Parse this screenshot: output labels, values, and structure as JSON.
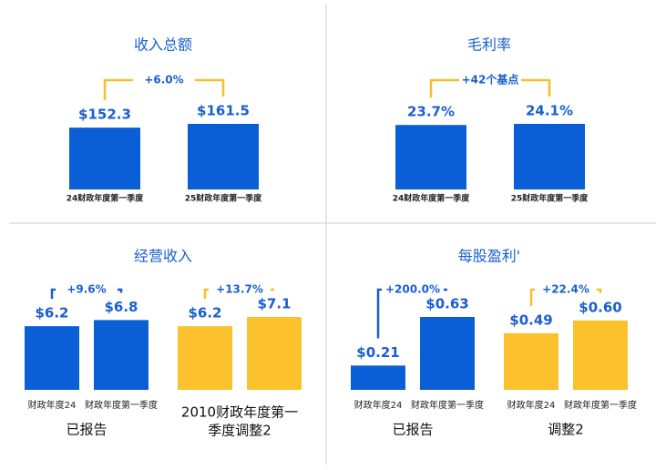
{
  "chart_data": [
    {
      "type": "bar",
      "title": "收入总额",
      "groups": [
        {
          "color": "#0a5fd6",
          "bracket_color": "#f5c02b",
          "categories": [
            "24财政年度第一季度",
            "25财政年度第一季度"
          ],
          "values": [
            152.3,
            161.5
          ],
          "value_labels": [
            "$152.3",
            "$161.5"
          ],
          "change": "+6.0%"
        }
      ]
    },
    {
      "type": "bar",
      "title": "毛利率",
      "groups": [
        {
          "color": "#0a5fd6",
          "bracket_color": "#f5c02b",
          "categories": [
            "24财政年度第一季度",
            "25财政年度第一季度"
          ],
          "values": [
            23.7,
            24.1
          ],
          "value_labels": [
            "23.7%",
            "24.1%"
          ],
          "change": "+42个基点"
        }
      ]
    },
    {
      "type": "bar",
      "title": "经营收入",
      "groups": [
        {
          "name_lines": [
            "已报告"
          ],
          "color": "#0a5fd6",
          "bracket_color": "#1a5fcf",
          "categories": [
            "财政年度24",
            "财政年度第一季度"
          ],
          "values": [
            6.2,
            6.8
          ],
          "value_labels": [
            "$6.2",
            "$6.8"
          ],
          "change": "+9.6%"
        },
        {
          "name_lines": [
            "2010财政年度第一",
            "季度调整2"
          ],
          "color": "#fcc22d",
          "bracket_color": "#f5c02b",
          "values": [
            6.2,
            7.1
          ],
          "value_labels": [
            "$6.2",
            "$7.1"
          ],
          "change": "+13.7%"
        }
      ]
    },
    {
      "type": "bar",
      "title": "每股盈利'",
      "groups": [
        {
          "name_lines": [
            "已报告"
          ],
          "color": "#0a5fd6",
          "bracket_color": "#1a5fcf",
          "categories": [
            "财政年度24",
            "财政年度第一季度"
          ],
          "values": [
            0.21,
            0.63
          ],
          "value_labels": [
            "$0.21",
            "$0.63"
          ],
          "change": "+200.0%"
        },
        {
          "name_lines": [
            "调整2"
          ],
          "color": "#fcc22d",
          "bracket_color": "#f5c02b",
          "categories": [
            "财政年度24",
            "财政年度第一季度"
          ],
          "values": [
            0.49,
            0.6
          ],
          "value_labels": [
            "$0.49",
            "$0.60"
          ],
          "change": "+22.4%"
        }
      ]
    }
  ]
}
